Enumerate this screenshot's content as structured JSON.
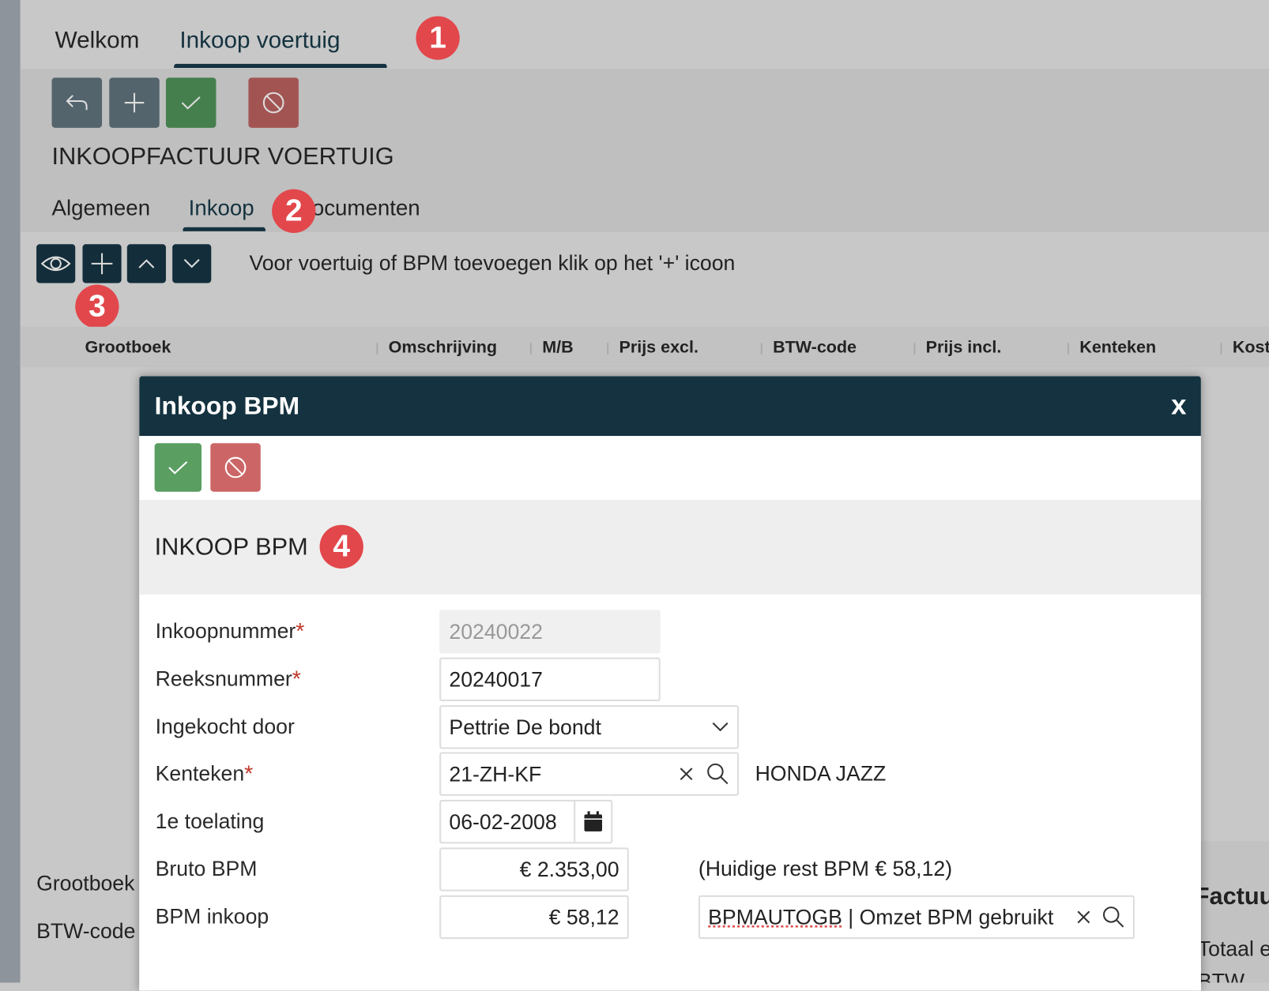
{
  "tabs": [
    {
      "label": "Welkom",
      "active": false
    },
    {
      "label": "Inkoop voertuig",
      "active": true
    }
  ],
  "badges": [
    "1",
    "2",
    "3",
    "4"
  ],
  "toolbar": {
    "buttons": [
      {
        "icon": "undo-icon",
        "color": "#53646c"
      },
      {
        "icon": "plus-icon",
        "color": "#53646c"
      },
      {
        "icon": "check-icon",
        "color": "#457f4d"
      },
      {
        "icon": "cancel-icon",
        "color": "#a25453"
      }
    ]
  },
  "page_title": "INKOOPFACTUUR VOERTUIG",
  "subtabs": [
    {
      "label": "Algemeen",
      "active": false
    },
    {
      "label": "Inkoop",
      "active": true
    },
    {
      "label": "Documenten",
      "active": false
    }
  ],
  "detail_toolbar": {
    "hint": "Voor voertuig of BPM toevoegen klik op het '+' icoon",
    "buttons": [
      "eye-icon",
      "plus-icon",
      "chevron-up-icon",
      "chevron-down-icon"
    ]
  },
  "table": {
    "columns": [
      "Grootboek",
      "Omschrijving",
      "M/B",
      "Prijs excl.",
      "BTW-code",
      "Prijs incl.",
      "Kenteken",
      "Kost"
    ]
  },
  "background": {
    "labels": [
      "Grootboek",
      "BTW-code"
    ],
    "right_labels": [
      "Factuu",
      "Totaal e",
      "BTW"
    ]
  },
  "modal": {
    "title": "Inkoop BPM",
    "close": "x",
    "section_title": "INKOOP BPM",
    "fields": {
      "inkoopnummer": {
        "label": "Inkoopnummer",
        "value": "20240022",
        "required": true
      },
      "reeksnummer": {
        "label": "Reeksnummer",
        "value": "20240017",
        "required": true
      },
      "ingekocht_door": {
        "label": "Ingekocht door",
        "value": "Pettrie De bondt"
      },
      "kenteken": {
        "label": "Kenteken",
        "value": "21-ZH-KF",
        "required": true,
        "vehicle": "HONDA JAZZ"
      },
      "toelating": {
        "label": "1e toelating",
        "value": "06-02-2008"
      },
      "bruto_bpm": {
        "label": "Bruto BPM",
        "value": "€ 2.353,00",
        "note": "(Huidige rest BPM € 58,12)"
      },
      "bpm_inkoop": {
        "label": "BPM inkoop",
        "value": "€ 58,12",
        "grootboek_code": "BPMAUTOGB",
        "grootboek_desc": " | Omzet BPM gebruikt"
      }
    },
    "required_mark": "*"
  },
  "colors": {
    "primary": "#14323f",
    "success": "#5a9e62",
    "danger": "#cc6666",
    "badge": "#e2474b"
  }
}
